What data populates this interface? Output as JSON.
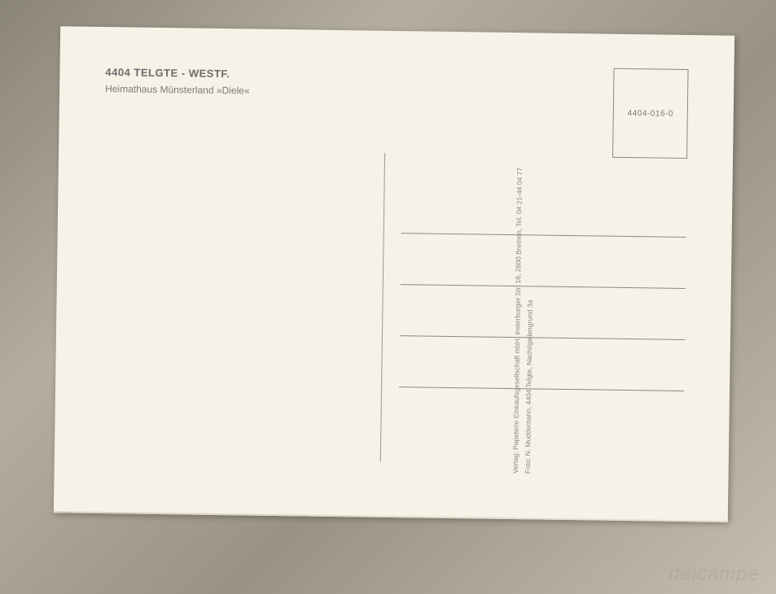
{
  "postcard": {
    "header": {
      "title": "4404 TELGTE - WESTF.",
      "subtitle": "Heimathaus Münsterland   »Diele«"
    },
    "stamp": {
      "code": "4404-016-0"
    },
    "publisher": {
      "line1": "Verlag: Papeterie Einkaufsgesellschaft mbH, Insterburger Str. 18, 2800 Bremen, Tel. 04 21-44 04 77",
      "line2": "Foto: N. Muddemann, 4404 Telgte, Nachtigallengrund 3a"
    }
  },
  "watermark": "delcampe",
  "colors": {
    "card_bg": "#f5f2e8",
    "text_primary": "#6b6b6b",
    "text_secondary": "#7a7a7a",
    "text_small": "#888",
    "line_color": "#888",
    "border_color": "#888"
  }
}
